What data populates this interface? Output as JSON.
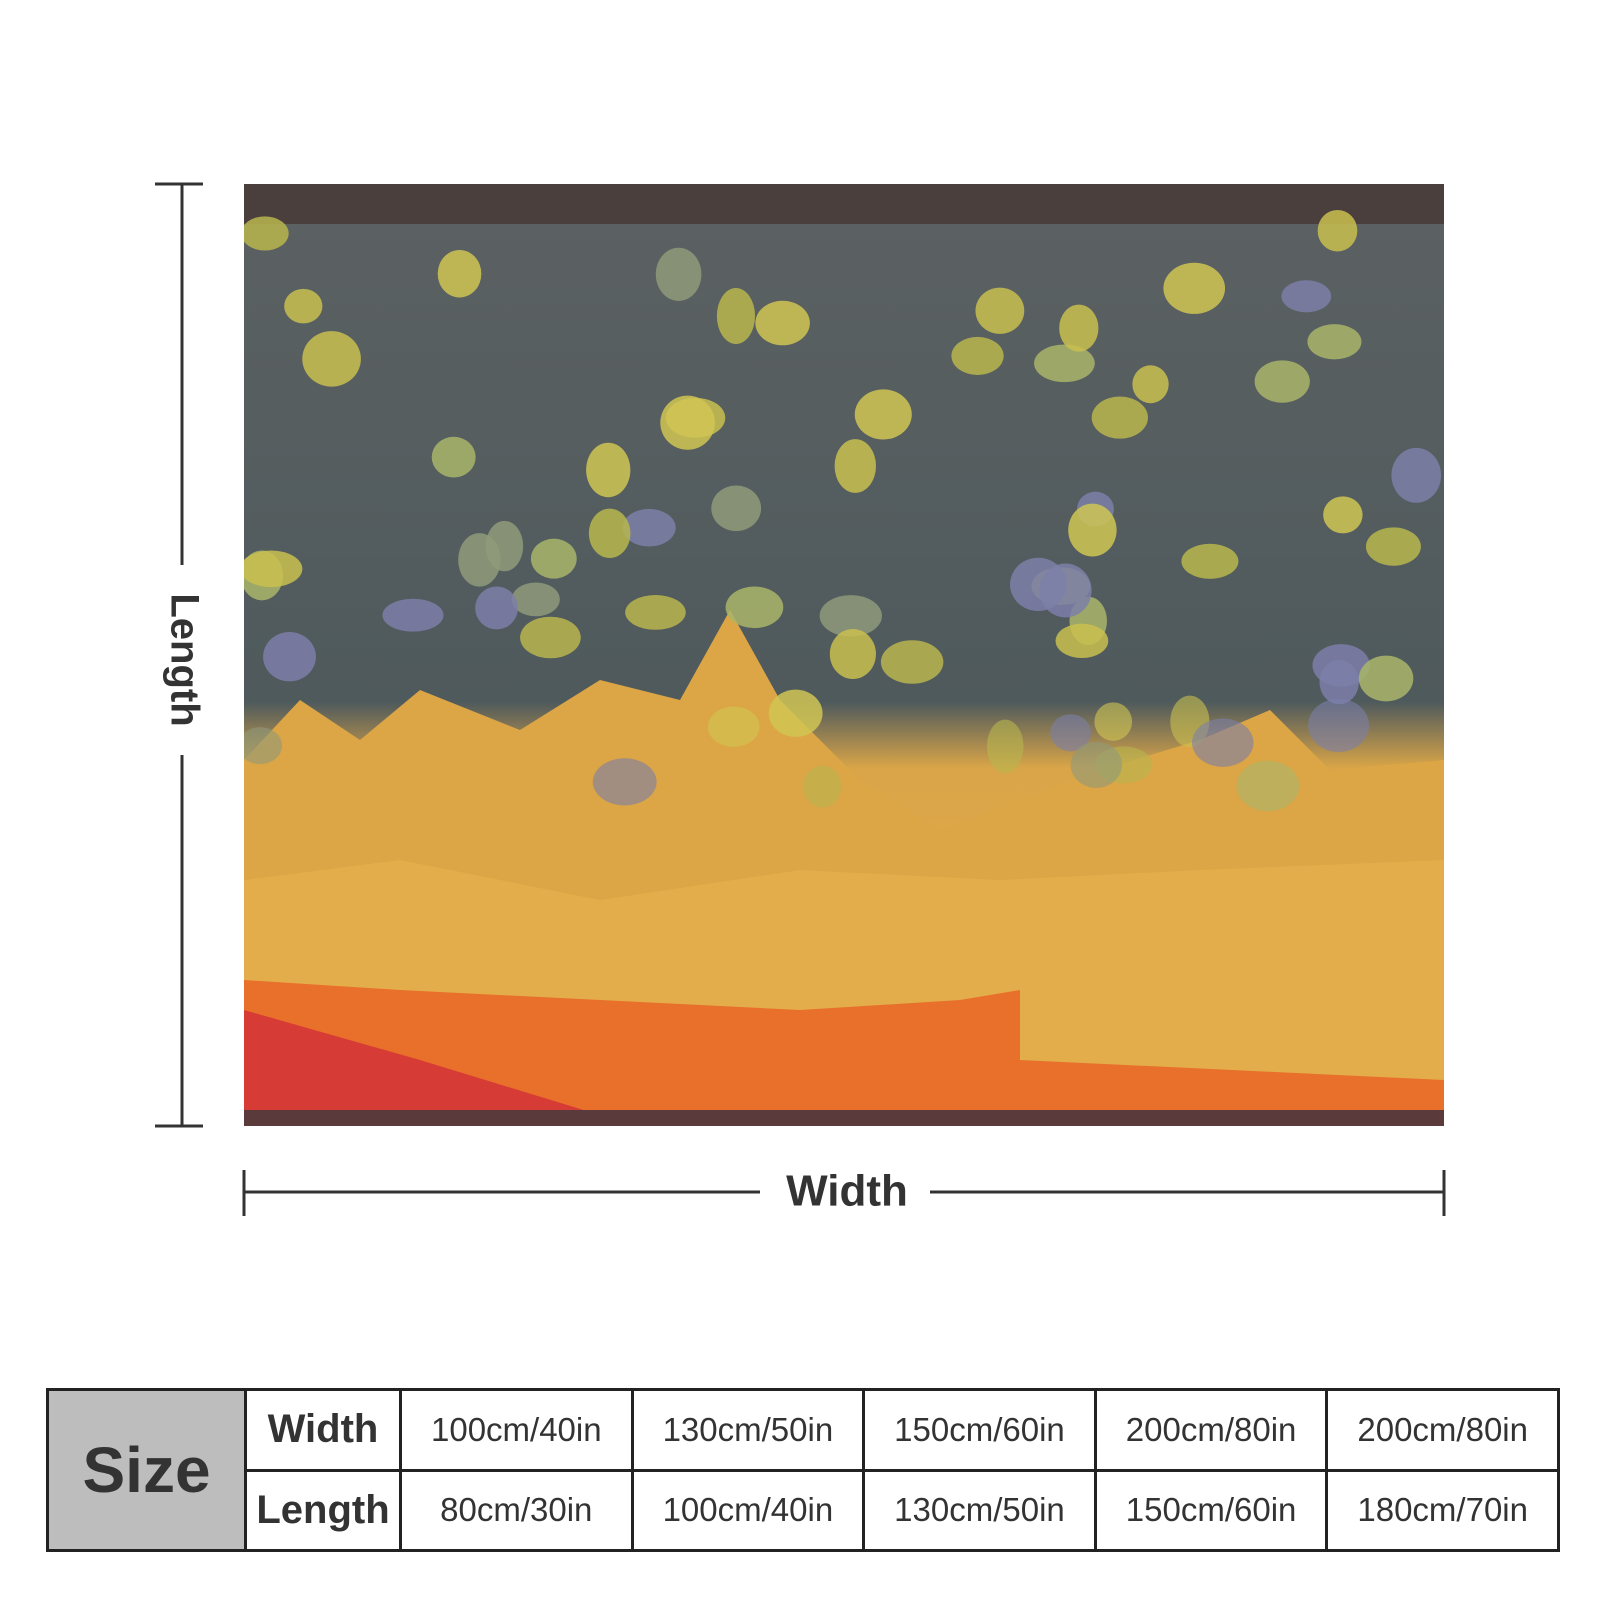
{
  "dimensions": {
    "length": "Length",
    "width": "Width"
  },
  "table": {
    "header": "Size",
    "rows": [
      [
        "Width",
        "100cm/40in",
        "130cm/50in",
        "150cm/60in",
        "200cm/80in",
        "200cm/80in"
      ],
      [
        "Length",
        "80cm/30in",
        "100cm/40in",
        "130cm/50in",
        "150cm/60in",
        "180cm/70in"
      ]
    ]
  }
}
